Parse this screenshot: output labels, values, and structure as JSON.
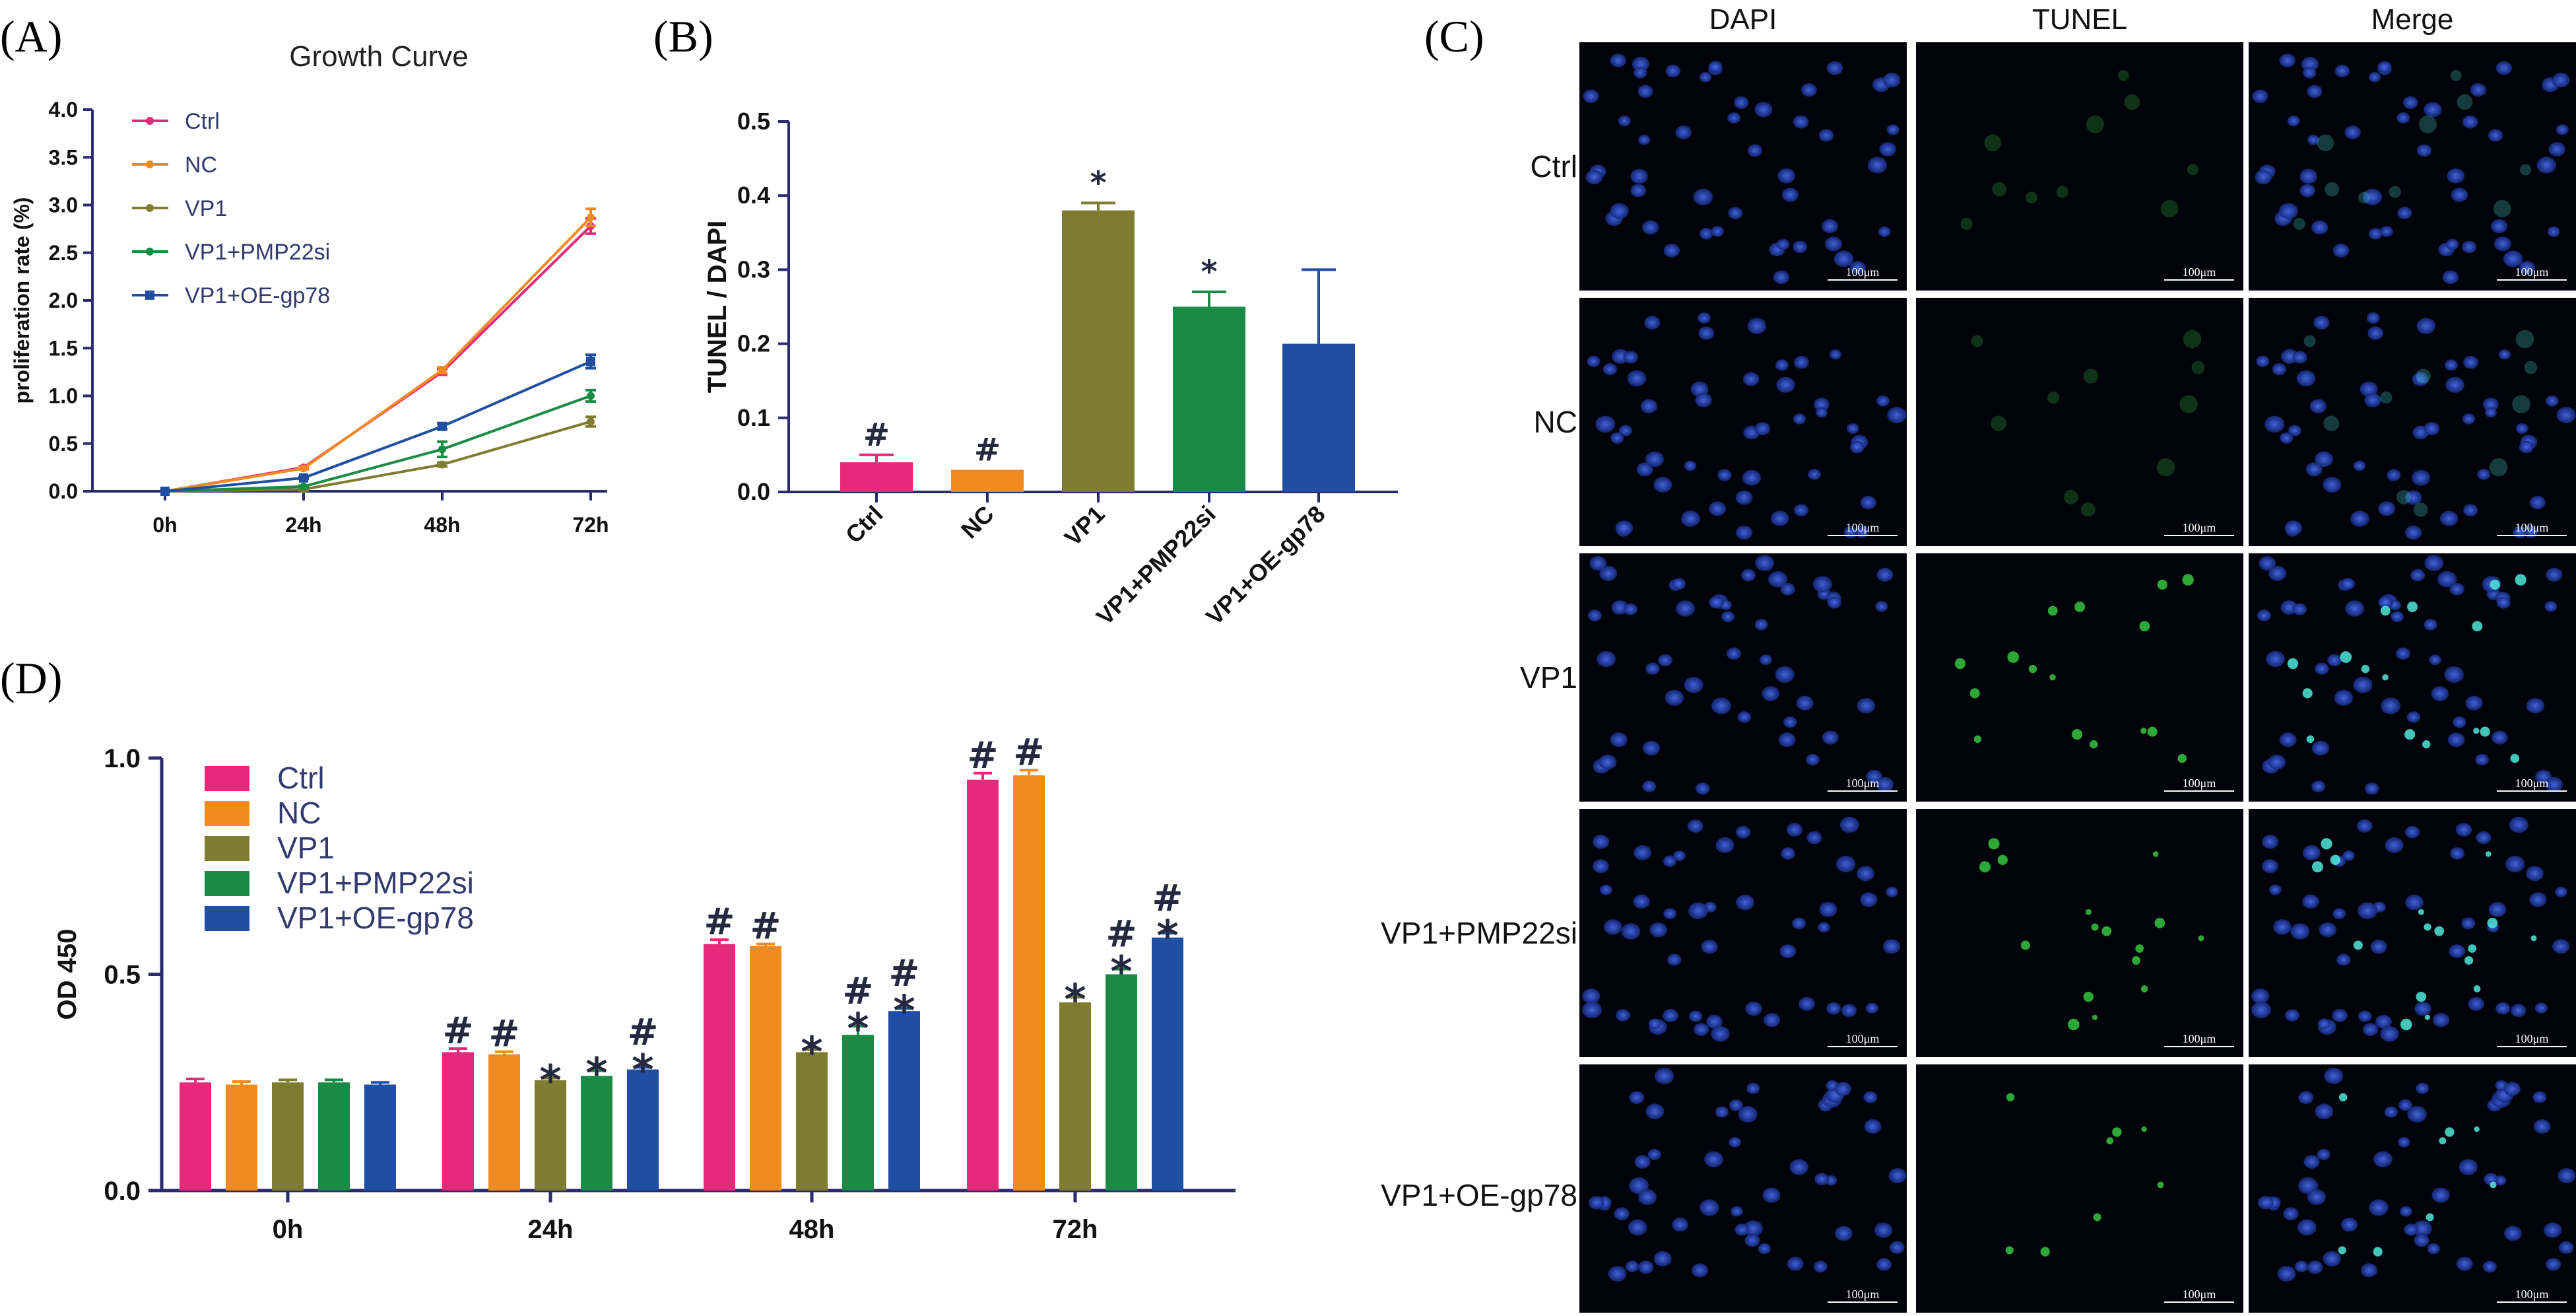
{
  "colors": {
    "Ctrl": "#e8287a",
    "NC": "#f28a22",
    "VP1": "#7f7c31",
    "VP1+PMP22si": "#1a8a45",
    "VP1+OE-gp78": "#1f4ea3",
    "axis": "#2c2a6e",
    "marker": "#25283f"
  },
  "chart_data": [
    {
      "panel": "(A)",
      "type": "line",
      "title": "Growth Curve",
      "xlabel": "",
      "ylabel": "proliferation rate (%)",
      "categories": [
        "0h",
        "24h",
        "48h",
        "72h"
      ],
      "ylim": [
        0,
        4
      ],
      "yticks": [
        "0.0",
        "0.5",
        "1.0",
        "1.5",
        "2.0",
        "2.5",
        "3.0",
        "3.5",
        "4.0"
      ],
      "legend": "top-left",
      "series": [
        {
          "name": "Ctrl",
          "values": [
            0,
            0.25,
            1.25,
            2.78
          ],
          "errors": [
            0,
            0.01,
            0.03,
            0.08
          ]
        },
        {
          "name": "NC",
          "values": [
            0,
            0.24,
            1.27,
            2.87
          ],
          "errors": [
            0,
            0.01,
            0.03,
            0.09
          ]
        },
        {
          "name": "VP1",
          "values": [
            0,
            0.02,
            0.28,
            0.73
          ],
          "errors": [
            0,
            0.01,
            0.02,
            0.05
          ]
        },
        {
          "name": "VP1+PMP22si",
          "values": [
            0,
            0.05,
            0.44,
            1.0
          ],
          "errors": [
            0,
            0.01,
            0.08,
            0.06
          ]
        },
        {
          "name": "VP1+OE-gp78",
          "values": [
            0,
            0.14,
            0.68,
            1.36
          ],
          "errors": [
            0,
            0.01,
            0.03,
            0.07
          ]
        }
      ]
    },
    {
      "panel": "(B)",
      "type": "bar",
      "title": "",
      "xlabel": "",
      "ylabel": "TUNEL / DAPI",
      "categories": [
        "Ctrl",
        "NC",
        "VP1",
        "VP1+PMP22si",
        "VP1+OE-gp78"
      ],
      "values": [
        0.04,
        0.03,
        0.38,
        0.25,
        0.2
      ],
      "errors": [
        0.01,
        0.0,
        0.01,
        0.02,
        0.1
      ],
      "annotations": [
        "#",
        "#",
        "*",
        "*",
        ""
      ],
      "ylim": [
        0,
        0.5
      ],
      "yticks": [
        "0.0",
        "0.1",
        "0.2",
        "0.3",
        "0.4",
        "0.5"
      ]
    },
    {
      "panel": "(D)",
      "type": "bar",
      "title": "",
      "xlabel": "",
      "ylabel": "OD 450",
      "categories": [
        "0h",
        "24h",
        "48h",
        "72h"
      ],
      "ylim": [
        0,
        1.0
      ],
      "yticks": [
        "0.0",
        "0.5",
        "1.0"
      ],
      "legend": "top-left",
      "series": [
        {
          "name": "Ctrl",
          "values": [
            0.25,
            0.32,
            0.57,
            0.95
          ],
          "errors": [
            0.008,
            0.008,
            0.01,
            0.015
          ],
          "annotations": [
            [],
            [
              "#"
            ],
            [
              "#"
            ],
            [
              "#"
            ]
          ]
        },
        {
          "name": "NC",
          "values": [
            0.245,
            0.315,
            0.565,
            0.96
          ],
          "errors": [
            0.007,
            0.006,
            0.005,
            0.012
          ],
          "annotations": [
            [],
            [
              "#"
            ],
            [
              "#"
            ],
            [
              "#"
            ]
          ]
        },
        {
          "name": "VP1",
          "values": [
            0.25,
            0.255,
            0.32,
            0.435
          ],
          "errors": [
            0.006,
            0.005,
            0.006,
            0.012
          ],
          "annotations": [
            [],
            [
              "*"
            ],
            [
              "*"
            ],
            [
              "*"
            ]
          ]
        },
        {
          "name": "VP1+PMP22si",
          "values": [
            0.25,
            0.265,
            0.36,
            0.5
          ],
          "errors": [
            0.006,
            0.012,
            0.02,
            0.012
          ],
          "annotations": [
            [],
            [
              "*"
            ],
            [
              "*",
              "#"
            ],
            [
              "*",
              "#"
            ]
          ]
        },
        {
          "name": "VP1+OE-gp78",
          "values": [
            0.245,
            0.28,
            0.415,
            0.585
          ],
          "errors": [
            0.005,
            0.005,
            0.006,
            0.01
          ],
          "annotations": [
            [],
            [
              "*",
              "#"
            ],
            [
              "*",
              "#"
            ],
            [
              "*",
              "#"
            ]
          ]
        }
      ]
    }
  ],
  "panel_c": {
    "panel": "(C)",
    "columns": [
      "DAPI",
      "TUNEL",
      "Merge"
    ],
    "rows": [
      "Ctrl",
      "NC",
      "VP1",
      "VP1+PMP22si",
      "VP1+OE-gp78"
    ],
    "scale_bar": "100μm"
  }
}
